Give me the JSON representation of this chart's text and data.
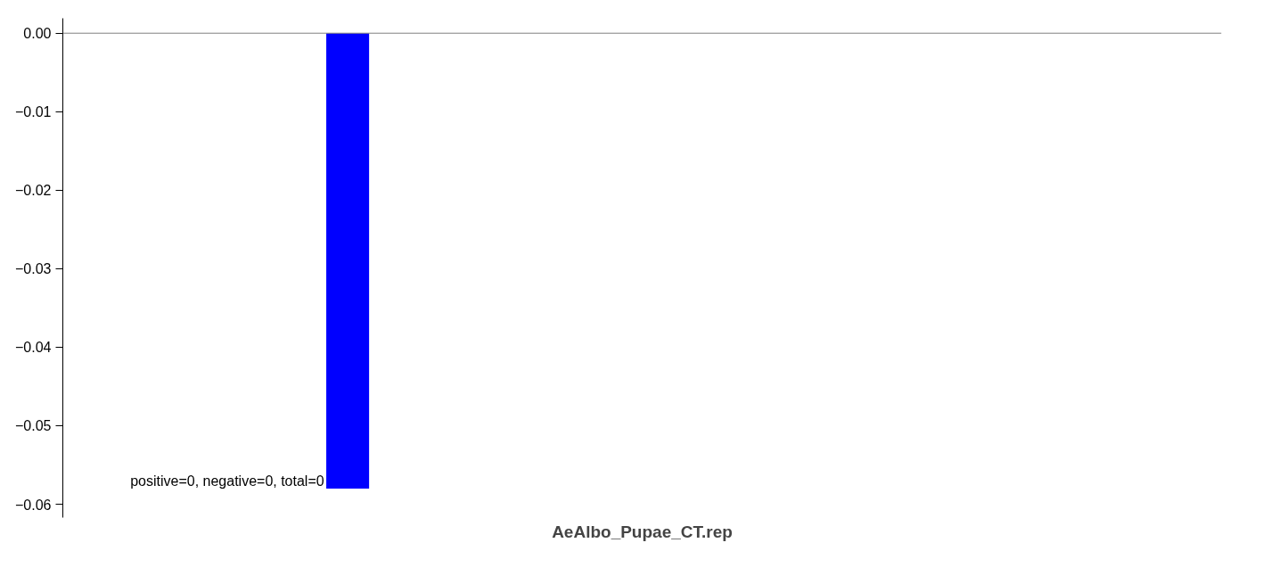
{
  "chart_data": {
    "type": "bar",
    "xlabel": "AeAlbo_Pupae_CT.rep",
    "categories": [
      null
    ],
    "values": [
      -0.058
    ],
    "color": "#0000ff",
    "ylim": [
      -0.0617,
      0.0019
    ],
    "yticks": [
      {
        "value": 0,
        "label": "0.00"
      },
      {
        "value": -0.01,
        "label": "−0.01"
      },
      {
        "value": -0.02,
        "label": "−0.02"
      },
      {
        "value": -0.03,
        "label": "−0.03"
      },
      {
        "value": -0.04,
        "label": "−0.04"
      },
      {
        "value": -0.05,
        "label": "−0.05"
      },
      {
        "value": -0.06,
        "label": "−0.06"
      }
    ],
    "ref_lines": [
      {
        "axis": "y",
        "value": 0,
        "color": "#808080"
      }
    ],
    "annotations": [
      "positive=0, negative=0, total=0"
    ],
    "tick_labels": "y",
    "grid": false
  }
}
